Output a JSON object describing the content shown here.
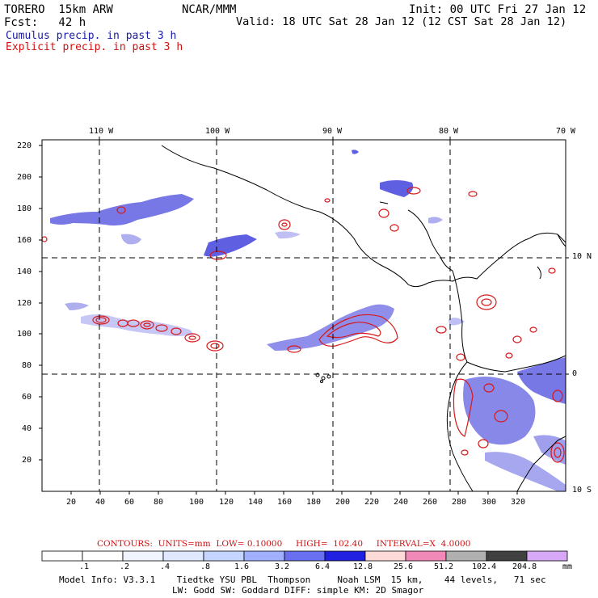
{
  "header": {
    "model": "TORERO  15km ARW",
    "org": "NCAR/MMM",
    "init": "Init: 00 UTC Fri 27 Jan 12",
    "fcst": "Fcst:   42 h",
    "valid": "Valid: 18 UTC Sat 28 Jan 12 (12 CST Sat 28 Jan 12)",
    "cumulus": "Cumulus precip. in past 3 h",
    "explicit": "Explicit precip. in past 3 h"
  },
  "map": {
    "x_ticks": [
      "20",
      "40",
      "60",
      "80",
      "100",
      "120",
      "140",
      "160",
      "180",
      "200",
      "220",
      "240",
      "260",
      "280",
      "300",
      "320"
    ],
    "y_ticks": [
      "20",
      "40",
      "60",
      "80",
      "100",
      "120",
      "140",
      "160",
      "180",
      "200",
      "220"
    ],
    "lon_labels": [
      "110 W",
      "100 W",
      "90 W",
      "80 W",
      "70 W"
    ],
    "lat_labels": [
      "10 N",
      "0",
      "10 S"
    ],
    "colors": {
      "coast": "#000000",
      "grid": "#000000",
      "cumulus": "#2a2ad8",
      "explicit": "#d81818"
    }
  },
  "contours": {
    "label": "CONTOURS:  UNITS=mm  LOW= 0.10000     HIGH=  102.40     INTERVAL=X  4.0000"
  },
  "colorbar": {
    "labels": [
      ".1",
      ".2",
      ".4",
      ".8",
      "1.6",
      "3.2",
      "6.4",
      "12.8",
      "25.6",
      "51.2",
      "102.4",
      "204.8"
    ],
    "unit": "mm",
    "colors": [
      "#ffffff",
      "#ffffff",
      "#f0f4ff",
      "#dfe8ff",
      "#c4d6ff",
      "#a0b0ff",
      "#6870f0",
      "#2020e0",
      "#ffd8d8",
      "#f088b8",
      "#b0b0b0",
      "#404040",
      "#d8a8f8"
    ]
  },
  "footer": {
    "line1": "Model Info: V3.3.1    Tiedtke YSU PBL  Thompson     Noah LSM  15 km,    44 levels,   71 sec",
    "line2": "LW: Godd SW: Goddard DIFF: simple KM: 2D Smagor"
  }
}
